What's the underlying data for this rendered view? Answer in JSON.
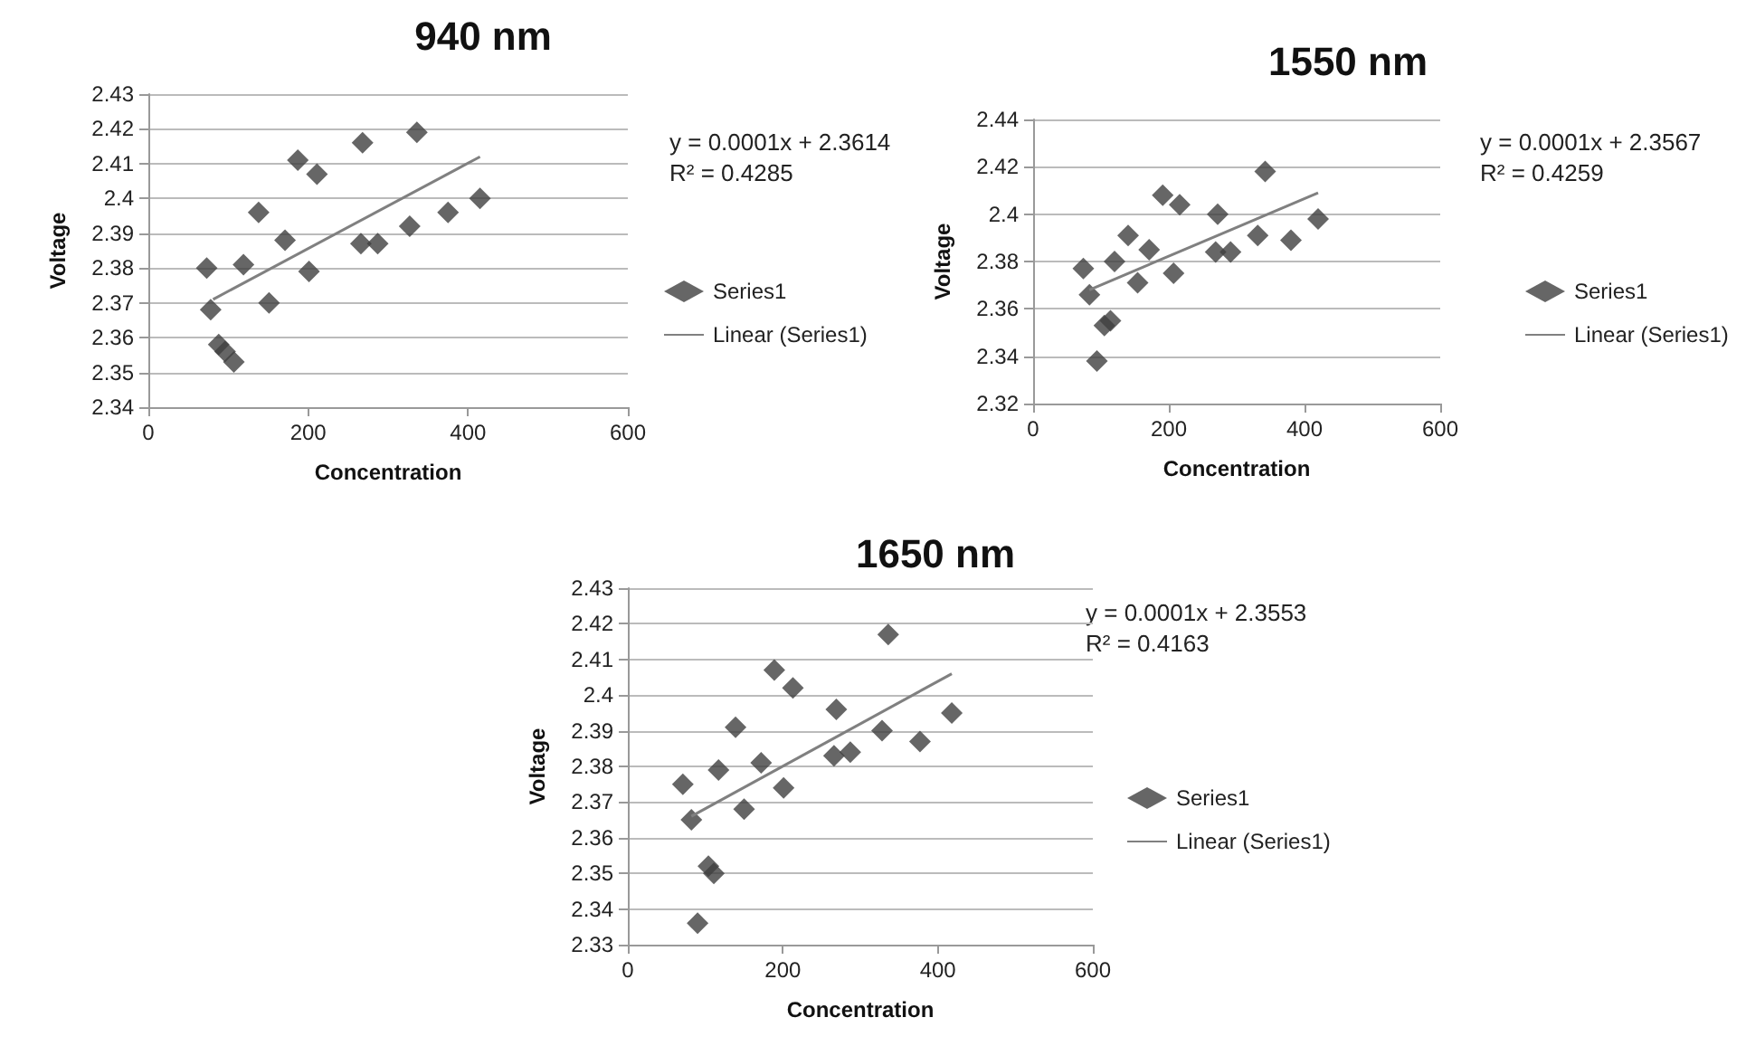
{
  "chart_data": [
    {
      "type": "scatter",
      "title": "940 nm",
      "xlabel": "Concentration",
      "ylabel": "Voltage",
      "xlim": [
        0,
        600
      ],
      "xticks": [
        0,
        200,
        400,
        600
      ],
      "ylim": [
        2.34,
        2.43
      ],
      "yticks": [
        2.34,
        2.35,
        2.36,
        2.37,
        2.38,
        2.39,
        2.4,
        2.41,
        2.42,
        2.43
      ],
      "grid": "y",
      "legend": "right",
      "marker": "diamond",
      "annotations": [
        "y = 0.0001x + 2.3614",
        "R² = 0.4285"
      ],
      "series": [
        {
          "name": "Series1",
          "type": "scatter",
          "color": "#404040",
          "x": [
            73,
            78,
            88,
            96,
            107,
            119,
            138,
            151,
            171,
            187,
            201,
            211,
            268,
            266,
            287,
            327,
            336,
            375,
            415
          ],
          "values": [
            2.38,
            2.368,
            2.358,
            2.356,
            2.353,
            2.381,
            2.396,
            2.37,
            2.388,
            2.411,
            2.379,
            2.407,
            2.416,
            2.387,
            2.387,
            2.392,
            2.419,
            2.396,
            2.4
          ]
        },
        {
          "name": "Linear (Series1)",
          "type": "line",
          "color": "#808080",
          "marker": "none",
          "x": [
            81,
            415
          ],
          "values": [
            2.371,
            2.412
          ]
        }
      ]
    },
    {
      "type": "scatter",
      "title": "1550 nm",
      "xlabel": "Concentration",
      "ylabel": "Voltage",
      "xlim": [
        0,
        600
      ],
      "xticks": [
        0,
        200,
        400,
        600
      ],
      "ylim": [
        2.32,
        2.44
      ],
      "yticks": [
        2.32,
        2.34,
        2.36,
        2.38,
        2.4,
        2.42,
        2.44
      ],
      "grid": "y",
      "legend": "right",
      "marker": "diamond",
      "annotations": [
        "y = 0.0001x + 2.3567",
        "R² = 0.4259"
      ],
      "series": [
        {
          "name": "Series1",
          "type": "scatter",
          "color": "#404040",
          "x": [
            74,
            83,
            105,
            114,
            94,
            120,
            140,
            154,
            171,
            191,
            207,
            216,
            272,
            269,
            291,
            331,
            342,
            380,
            420
          ],
          "values": [
            2.377,
            2.366,
            2.353,
            2.355,
            2.338,
            2.38,
            2.391,
            2.371,
            2.385,
            2.408,
            2.375,
            2.404,
            2.4,
            2.384,
            2.384,
            2.391,
            2.418,
            2.389,
            2.398
          ]
        },
        {
          "name": "Linear (Series1)",
          "type": "line",
          "color": "#808080",
          "marker": "none",
          "x": [
            83,
            420
          ],
          "values": [
            2.368,
            2.409
          ]
        }
      ]
    },
    {
      "type": "scatter",
      "title": "1650 nm",
      "xlabel": "Concentration",
      "ylabel": "Voltage",
      "xlim": [
        0,
        600
      ],
      "xticks": [
        0,
        200,
        400,
        600
      ],
      "ylim": [
        2.33,
        2.43
      ],
      "yticks": [
        2.33,
        2.34,
        2.35,
        2.36,
        2.37,
        2.38,
        2.39,
        2.4,
        2.41,
        2.42,
        2.43
      ],
      "grid": "y",
      "legend": "right",
      "marker": "diamond",
      "annotations": [
        "y = 0.0001x + 2.3553",
        "R² = 0.4163"
      ],
      "series": [
        {
          "name": "Series1",
          "type": "scatter",
          "color": "#404040",
          "x": [
            71,
            82,
            104,
            111,
            90,
            117,
            139,
            150,
            172,
            189,
            201,
            213,
            269,
            266,
            287,
            328,
            336,
            377,
            418
          ],
          "values": [
            2.375,
            2.365,
            2.352,
            2.35,
            2.336,
            2.379,
            2.391,
            2.368,
            2.381,
            2.407,
            2.374,
            2.402,
            2.396,
            2.383,
            2.384,
            2.39,
            2.417,
            2.387,
            2.395
          ]
        },
        {
          "name": "Linear (Series1)",
          "type": "line",
          "color": "#808080",
          "marker": "none",
          "x": [
            82,
            418
          ],
          "values": [
            2.366,
            2.406
          ]
        }
      ]
    }
  ]
}
